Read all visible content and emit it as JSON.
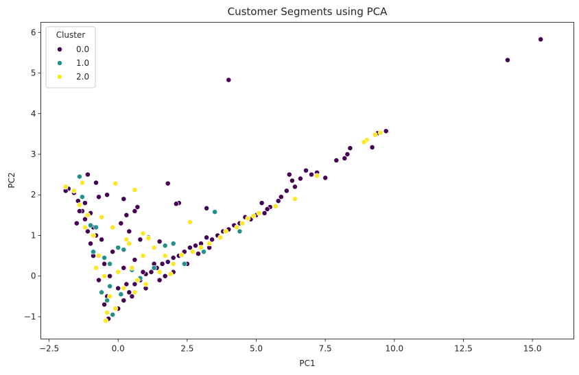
{
  "chart_data": {
    "type": "scatter",
    "title": "Customer Segments using PCA",
    "xlabel": "PC1",
    "ylabel": "PC2",
    "xlim": [
      -2.8,
      16.5
    ],
    "ylim": [
      -1.55,
      6.25
    ],
    "xticks": [
      -2.5,
      0.0,
      2.5,
      5.0,
      7.5,
      10.0,
      12.5,
      15.0
    ],
    "xtick_labels": [
      "−2.5",
      "0.0",
      "2.5",
      "5.0",
      "7.5",
      "10.0",
      "12.5",
      "15.0"
    ],
    "yticks": [
      -1,
      0,
      1,
      2,
      3,
      4,
      5,
      6
    ],
    "ytick_labels": [
      "−1",
      "0",
      "1",
      "2",
      "3",
      "4",
      "5",
      "6"
    ],
    "grid": false,
    "legend": {
      "title": "Cluster",
      "position": "top-left"
    },
    "series": [
      {
        "name": "0.0",
        "color": "#440154",
        "points": [
          [
            15.3,
            5.83
          ],
          [
            14.1,
            5.32
          ],
          [
            4.0,
            4.83
          ],
          [
            9.7,
            3.57
          ],
          [
            9.4,
            3.52
          ],
          [
            9.2,
            3.17
          ],
          [
            8.4,
            3.15
          ],
          [
            8.3,
            3.0
          ],
          [
            8.2,
            2.9
          ],
          [
            7.9,
            2.85
          ],
          [
            7.5,
            2.42
          ],
          [
            7.2,
            2.55
          ],
          [
            7.0,
            2.5
          ],
          [
            6.8,
            2.6
          ],
          [
            6.6,
            2.4
          ],
          [
            6.4,
            2.2
          ],
          [
            6.3,
            2.35
          ],
          [
            6.2,
            2.5
          ],
          [
            6.1,
            2.1
          ],
          [
            5.9,
            1.95
          ],
          [
            5.8,
            1.85
          ],
          [
            5.5,
            1.7
          ],
          [
            5.4,
            1.65
          ],
          [
            5.3,
            1.55
          ],
          [
            5.2,
            1.8
          ],
          [
            5.0,
            1.5
          ],
          [
            4.8,
            1.4
          ],
          [
            4.6,
            1.45
          ],
          [
            4.4,
            1.3
          ],
          [
            4.2,
            1.25
          ],
          [
            4.0,
            1.15
          ],
          [
            3.8,
            1.1
          ],
          [
            3.6,
            1.0
          ],
          [
            3.4,
            0.9
          ],
          [
            3.2,
            0.95
          ],
          [
            3.0,
            0.8
          ],
          [
            2.8,
            0.75
          ],
          [
            2.6,
            0.7
          ],
          [
            2.4,
            0.6
          ],
          [
            2.2,
            0.5
          ],
          [
            2.0,
            0.45
          ],
          [
            1.8,
            0.35
          ],
          [
            1.6,
            0.3
          ],
          [
            1.4,
            0.2
          ],
          [
            1.2,
            0.1
          ],
          [
            1.0,
            0.05
          ],
          [
            0.8,
            -0.1
          ],
          [
            0.6,
            -0.2
          ],
          [
            0.4,
            -0.4
          ],
          [
            0.2,
            -0.6
          ],
          [
            0.0,
            -0.8
          ],
          [
            -0.2,
            -0.95
          ],
          [
            -0.35,
            -1.05
          ],
          [
            -0.5,
            -0.7
          ],
          [
            -0.6,
            -0.4
          ],
          [
            -0.7,
            -0.1
          ],
          [
            -0.8,
            0.2
          ],
          [
            -0.9,
            0.5
          ],
          [
            -1.0,
            0.8
          ],
          [
            -1.1,
            1.1
          ],
          [
            -1.2,
            1.4
          ],
          [
            -1.3,
            1.6
          ],
          [
            -1.45,
            1.85
          ],
          [
            -1.6,
            2.05
          ],
          [
            -1.8,
            2.15
          ],
          [
            -1.9,
            2.1
          ],
          [
            -1.1,
            2.5
          ],
          [
            -0.4,
            2.0
          ],
          [
            -0.7,
            1.95
          ],
          [
            -0.8,
            2.3
          ],
          [
            0.2,
            1.9
          ],
          [
            0.7,
            1.7
          ],
          [
            0.6,
            1.6
          ],
          [
            1.8,
            2.28
          ],
          [
            2.2,
            1.8
          ],
          [
            2.1,
            1.78
          ],
          [
            3.2,
            1.67
          ],
          [
            1.1,
            0.95
          ],
          [
            1.5,
            0.85
          ],
          [
            0.8,
            0.9
          ],
          [
            0.4,
            1.1
          ],
          [
            0.1,
            1.3
          ],
          [
            0.3,
            1.5
          ],
          [
            2.0,
            0.1
          ],
          [
            2.5,
            0.3
          ],
          [
            1.5,
            -0.1
          ],
          [
            1.0,
            -0.3
          ],
          [
            0.5,
            -0.5
          ],
          [
            0.0,
            -0.3
          ],
          [
            -0.3,
            0.0
          ],
          [
            0.2,
            0.2
          ],
          [
            0.6,
            0.4
          ],
          [
            -0.5,
            0.3
          ],
          [
            -0.2,
            0.6
          ],
          [
            -0.6,
            0.9
          ],
          [
            -0.9,
            1.2
          ],
          [
            -1.2,
            1.8
          ],
          [
            -0.4,
            -0.5
          ],
          [
            0.9,
            0.1
          ],
          [
            1.3,
            0.3
          ],
          [
            1.7,
            0.0
          ],
          [
            2.9,
            0.55
          ],
          [
            3.3,
            0.7
          ],
          [
            -1.5,
            1.3
          ],
          [
            -1.4,
            1.6
          ],
          [
            -1.0,
            1.55
          ],
          [
            -0.8,
            1.0
          ],
          [
            0.3,
            -0.2
          ]
        ]
      },
      {
        "name": "1.0",
        "color": "#21918c",
        "points": [
          [
            -1.4,
            2.45
          ],
          [
            -1.3,
            1.95
          ],
          [
            3.5,
            1.58
          ],
          [
            4.4,
            1.1
          ],
          [
            3.1,
            0.6
          ],
          [
            0.0,
            0.7
          ],
          [
            0.2,
            0.65
          ],
          [
            -0.5,
            0.45
          ],
          [
            -1.0,
            1.25
          ],
          [
            -0.8,
            1.2
          ],
          [
            -0.3,
            0.3
          ],
          [
            -0.6,
            -0.4
          ],
          [
            0.5,
            0.15
          ],
          [
            2.0,
            0.8
          ],
          [
            1.7,
            0.75
          ],
          [
            2.4,
            0.3
          ],
          [
            -0.2,
            -0.95
          ],
          [
            0.8,
            -0.05
          ],
          [
            -0.4,
            -0.6
          ],
          [
            1.3,
            0.2
          ],
          [
            0.1,
            -0.45
          ],
          [
            -0.9,
            0.6
          ],
          [
            -0.3,
            -0.25
          ]
        ]
      },
      {
        "name": "2.0",
        "color": "#fde725",
        "points": [
          [
            9.5,
            3.53
          ],
          [
            9.3,
            3.48
          ],
          [
            9.0,
            3.35
          ],
          [
            8.9,
            3.3
          ],
          [
            7.2,
            2.47
          ],
          [
            6.4,
            1.9
          ],
          [
            5.7,
            1.72
          ],
          [
            5.1,
            1.55
          ],
          [
            4.9,
            1.48
          ],
          [
            4.7,
            1.42
          ],
          [
            4.5,
            1.3
          ],
          [
            4.3,
            1.2
          ],
          [
            3.9,
            1.1
          ],
          [
            3.7,
            0.95
          ],
          [
            3.3,
            0.8
          ],
          [
            3.0,
            0.7
          ],
          [
            2.7,
            0.6
          ],
          [
            2.3,
            0.52
          ],
          [
            0.6,
            2.12
          ],
          [
            -0.1,
            2.28
          ],
          [
            -1.9,
            2.2
          ],
          [
            -1.6,
            2.1
          ],
          [
            -1.3,
            2.3
          ],
          [
            -1.1,
            1.5
          ],
          [
            -0.9,
            1.0
          ],
          [
            -0.7,
            0.5
          ],
          [
            -0.5,
            0.0
          ],
          [
            -0.3,
            -0.5
          ],
          [
            -0.1,
            -0.8
          ],
          [
            0.2,
            -0.3
          ],
          [
            0.5,
            0.2
          ],
          [
            0.9,
            0.5
          ],
          [
            1.3,
            0.7
          ],
          [
            1.7,
            0.5
          ],
          [
            2.0,
            0.3
          ],
          [
            0.9,
            1.05
          ],
          [
            1.1,
            0.93
          ],
          [
            0.4,
            0.8
          ],
          [
            -0.2,
            1.2
          ],
          [
            -0.6,
            1.45
          ],
          [
            0.6,
            -0.4
          ],
          [
            1.0,
            -0.2
          ],
          [
            1.5,
            0.1
          ],
          [
            -0.4,
            -0.9
          ],
          [
            0.0,
            0.1
          ],
          [
            -1.2,
            1.2
          ],
          [
            -1.4,
            1.75
          ],
          [
            0.3,
            0.9
          ],
          [
            2.6,
            1.33
          ],
          [
            1.9,
            0.05
          ],
          [
            0.7,
            -0.1
          ],
          [
            -0.8,
            0.2
          ],
          [
            -0.45,
            -1.1
          ]
        ]
      }
    ]
  }
}
